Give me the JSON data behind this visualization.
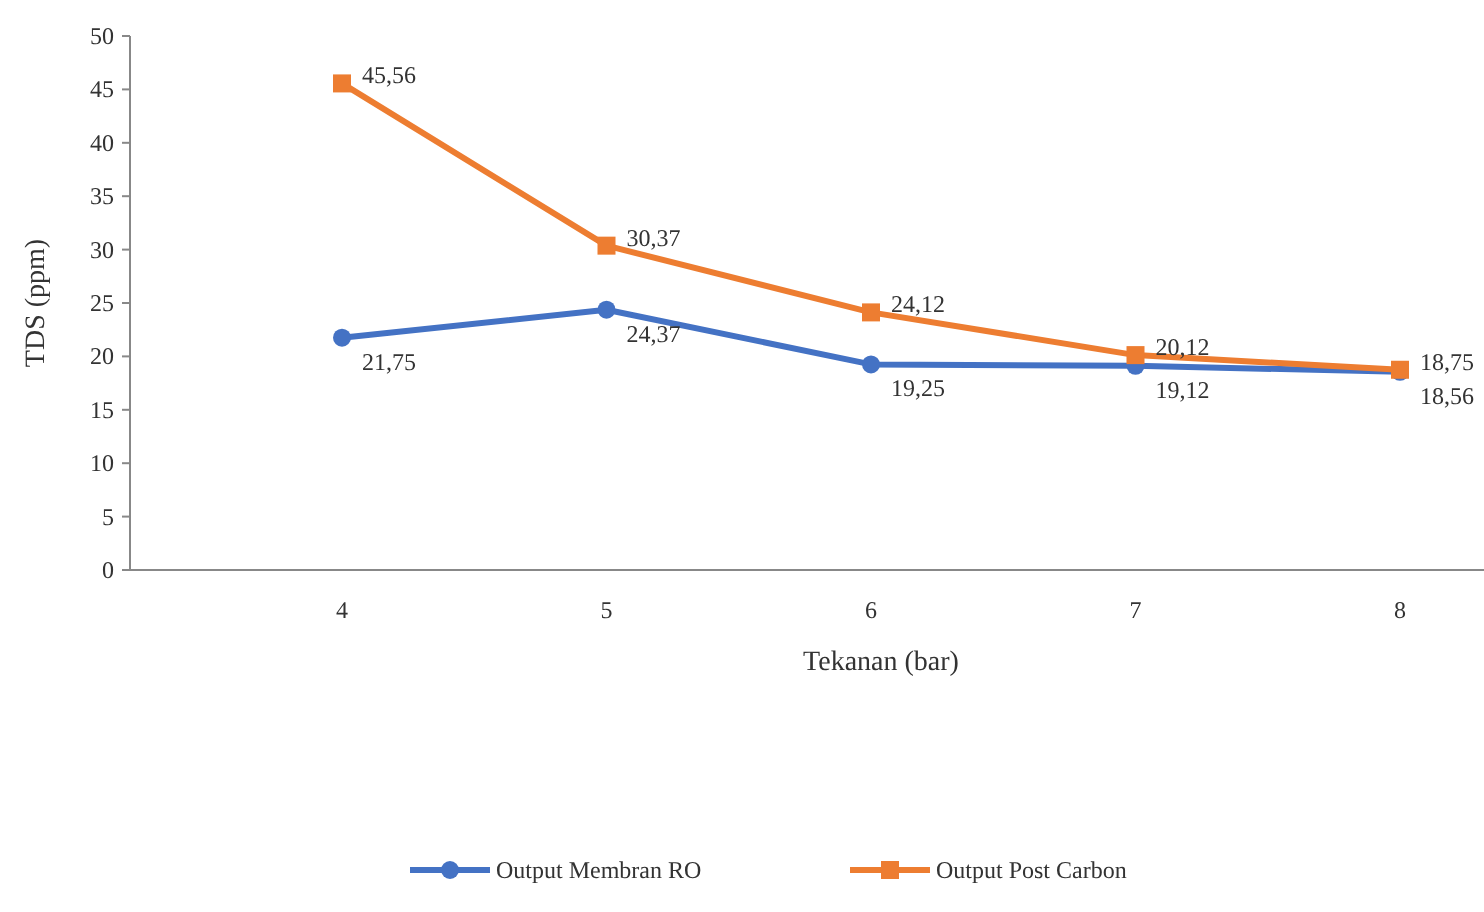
{
  "chart_data": {
    "type": "line",
    "xlabel": "Tekanan  (bar)",
    "ylabel": "TDS (ppm)",
    "categories": [
      "4",
      "5",
      "6",
      "7",
      "8"
    ],
    "ylim": [
      0,
      50
    ],
    "yticks": [
      0,
      5,
      10,
      15,
      20,
      25,
      30,
      35,
      40,
      45,
      50
    ],
    "grid": false,
    "legend": "bottom",
    "series": [
      {
        "name": "Output Membran RO",
        "color": "#4472c4",
        "marker": "circle",
        "values": [
          21.75,
          24.37,
          19.25,
          19.12,
          18.56
        ],
        "value_labels": [
          "21,75",
          "24,37",
          "19,25",
          "19,12",
          "18,56"
        ]
      },
      {
        "name": "Output Post Carbon",
        "color": "#ed7d31",
        "marker": "square",
        "values": [
          45.56,
          30.37,
          24.12,
          20.12,
          18.75
        ],
        "value_labels": [
          "45,56",
          "30,37",
          "24,12",
          "20,12",
          "18,75"
        ]
      }
    ]
  }
}
